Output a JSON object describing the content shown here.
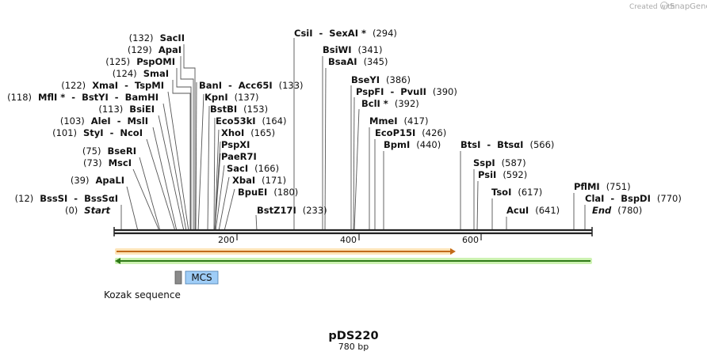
{
  "credit": {
    "prefix": "Created with",
    "brand": "SnapGene"
  },
  "plasmid": {
    "name": "pDS220",
    "size_label": "780 bp",
    "length_bp": 780
  },
  "ruler": [
    {
      "bp": 200,
      "label": "200"
    },
    {
      "bp": 400,
      "label": "400"
    },
    {
      "bp": 600,
      "label": "600"
    }
  ],
  "sites": [
    {
      "text": "(132)  SacII"
    },
    {
      "text": "(129)  ApaI"
    },
    {
      "text": "(125)  PspOMI"
    },
    {
      "text": "(124)  SmaI"
    },
    {
      "text": "(122)  XmaI  -  TspMI"
    },
    {
      "text": "(118)  MflI *  -  BstYI  -  BamHI"
    },
    {
      "text": "(113)  BsiEI"
    },
    {
      "text": "(103)  AleI  -  MslI"
    },
    {
      "text": "(101)  StyI  -  NcoI"
    },
    {
      "text": "(75)  BseRI"
    },
    {
      "text": "(73)  MscI"
    },
    {
      "text": "(39)  ApaLI"
    },
    {
      "text": "(12)  BssSI  -  BssSαI"
    },
    {
      "text": "(0)  Start"
    },
    {
      "text": "BanI  -  Acc65I  (133)"
    },
    {
      "text": "KpnI  (137)"
    },
    {
      "text": "BstBI  (153)"
    },
    {
      "text": "Eco53kI  (164)"
    },
    {
      "text": "XhoI  (165)"
    },
    {
      "text": "PspXI"
    },
    {
      "text": "PaeR7I"
    },
    {
      "text": "SacI  (166)"
    },
    {
      "text": "XbaI  (171)"
    },
    {
      "text": "BpuEI  (180)"
    },
    {
      "text": "BstZ17I  (233)"
    },
    {
      "text": "CsiI  -  SexAI *  (294)"
    },
    {
      "text": "BsiWI  (341)"
    },
    {
      "text": "BsaAI  (345)"
    },
    {
      "text": "BseYI  (386)"
    },
    {
      "text": "PspFI  -  PvuII  (390)"
    },
    {
      "text": "BclI *  (392)"
    },
    {
      "text": "MmeI  (417)"
    },
    {
      "text": "EcoP15I  (426)"
    },
    {
      "text": "BpmI  (440)"
    },
    {
      "text": "BtsI  -  BtsαI  (566)"
    },
    {
      "text": "SspI  (587)"
    },
    {
      "text": "PsiI  (592)"
    },
    {
      "text": "TsoI  (617)"
    },
    {
      "text": "AcuI  (641)"
    },
    {
      "text": "PflMI  (751)"
    },
    {
      "text": "ClaI  -  BspDI  (770)"
    },
    {
      "text": "End  (780)"
    }
  ],
  "features": {
    "mcs_label": "MCS",
    "kozak_label": "Kozak sequence",
    "forward_arrow_color": "#f0a040",
    "reverse_arrow_color": "#7fd34a",
    "mcs_color": "#9fcdf7",
    "kozak_color": "#888888"
  }
}
